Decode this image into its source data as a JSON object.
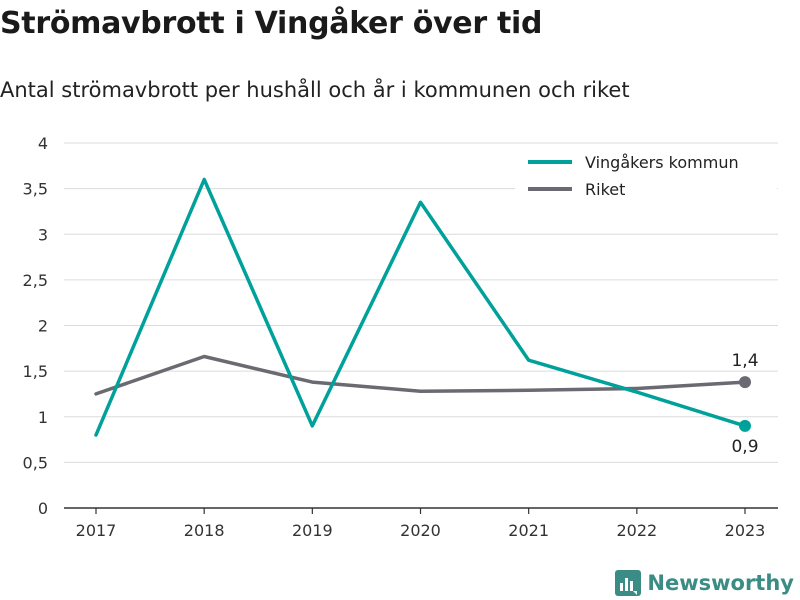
{
  "header": {
    "title": "Strömavbrott i Vingåker över tid",
    "subtitle": "Antal strömavbrott per hushåll och år i kommunen och riket"
  },
  "brand": {
    "name": "Newsworthy",
    "color": "#3a8c84",
    "icon": "bar-chart-logo-icon"
  },
  "chart_data": {
    "type": "line",
    "x": [
      "2017",
      "2018",
      "2019",
      "2020",
      "2021",
      "2022",
      "2023"
    ],
    "ylim": [
      0,
      4
    ],
    "yticks": [
      0,
      0.5,
      1,
      1.5,
      2,
      2.5,
      3,
      3.5,
      4
    ],
    "ytick_labels": [
      "0",
      "0,5",
      "1",
      "1,5",
      "2",
      "2,5",
      "3",
      "3,5",
      "4"
    ],
    "grid": true,
    "legend_position": "top-right",
    "series": [
      {
        "name": "Vingåkers kommun",
        "color": "#00a19a",
        "values": [
          0.8,
          3.6,
          0.9,
          3.35,
          1.62,
          1.27,
          0.9
        ],
        "end_label": "0,9",
        "end_label_position": "below"
      },
      {
        "name": "Riket",
        "color": "#6b6a72",
        "values": [
          1.25,
          1.66,
          1.38,
          1.28,
          1.29,
          1.31,
          1.38
        ],
        "end_label": "1,4",
        "end_label_position": "above"
      }
    ]
  }
}
